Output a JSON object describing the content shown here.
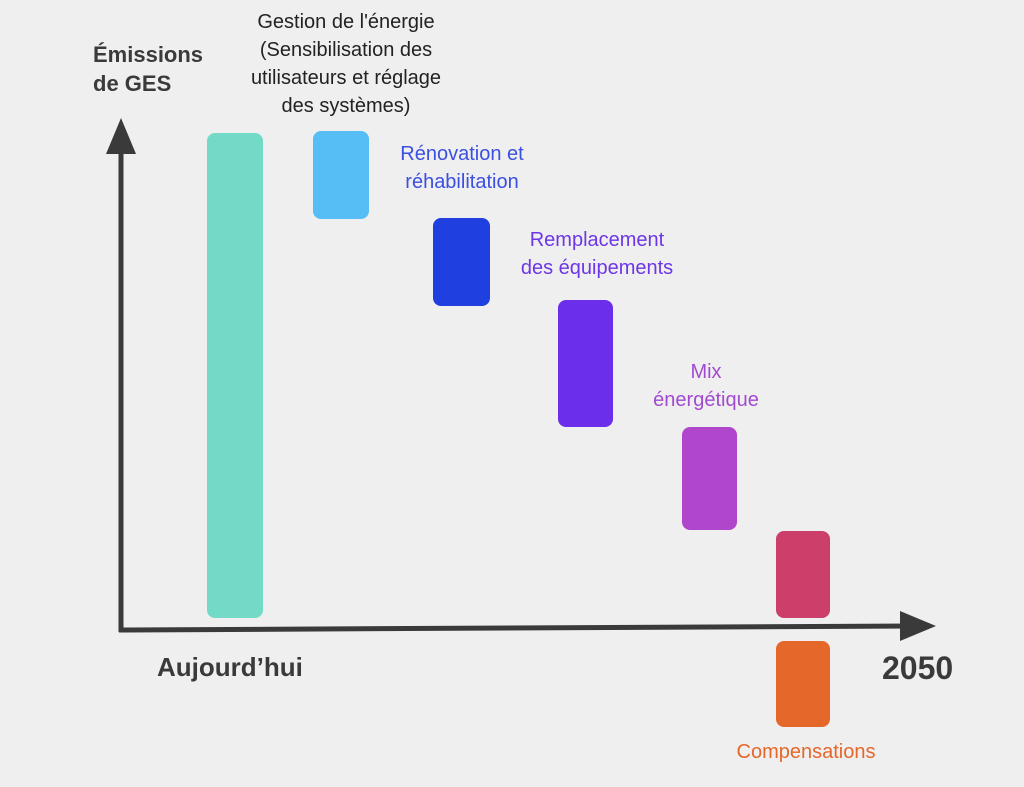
{
  "axes": {
    "y_label": "Émissions\nde GES",
    "x_start_label": "Aujourd’hui",
    "x_end_label": "2050"
  },
  "steps": [
    {
      "id": "today",
      "label": "",
      "color": "#72dac7"
    },
    {
      "id": "gestion",
      "label": "Gestion de l'énergie\n(Sensibilisation des\nutilisateurs et réglage\ndes systèmes)",
      "color": "#56bdf5",
      "label_color": "#222222"
    },
    {
      "id": "renovation",
      "label": "Rénovation et\nréhabilitation",
      "color": "#1f3fe0",
      "label_color": "#3b4fe0"
    },
    {
      "id": "remplacement",
      "label": "Remplacement\ndes équipements",
      "color": "#6b2eea",
      "label_color": "#6d36e6"
    },
    {
      "id": "mix",
      "label": "Mix\nénergétique",
      "color": "#b046cc",
      "label_color": "#a24ad0"
    },
    {
      "id": "residual",
      "label": "",
      "color": "#cc3f6b"
    },
    {
      "id": "compensations",
      "label": "Compensations",
      "color": "#e5672a",
      "label_color": "#e5672a"
    }
  ]
}
